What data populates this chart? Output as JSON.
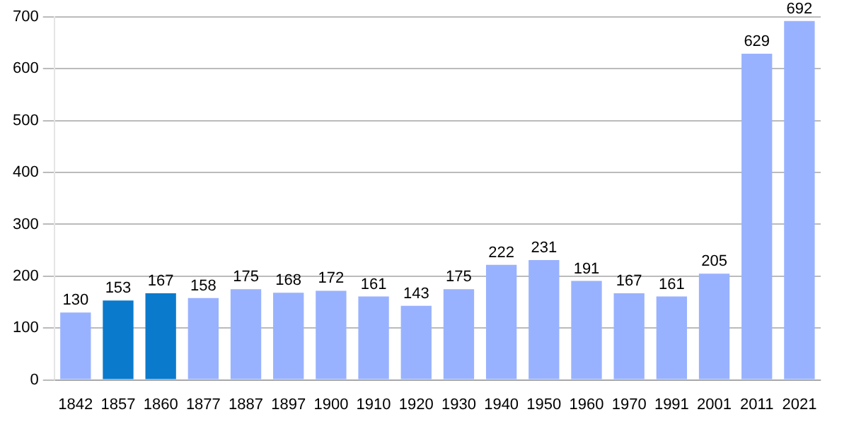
{
  "chart_data": {
    "type": "bar",
    "categories": [
      "1842",
      "1857",
      "1860",
      "1877",
      "1887",
      "1897",
      "1900",
      "1910",
      "1920",
      "1930",
      "1940",
      "1950",
      "1960",
      "1970",
      "1991",
      "2001",
      "2011",
      "2021"
    ],
    "values": [
      130,
      153,
      167,
      158,
      175,
      168,
      172,
      161,
      143,
      175,
      222,
      231,
      191,
      167,
      161,
      205,
      629,
      692
    ],
    "colors": [
      "#99b2ff",
      "#0a7acc",
      "#0a7acc",
      "#99b2ff",
      "#99b2ff",
      "#99b2ff",
      "#99b2ff",
      "#99b2ff",
      "#99b2ff",
      "#99b2ff",
      "#99b2ff",
      "#99b2ff",
      "#99b2ff",
      "#99b2ff",
      "#99b2ff",
      "#99b2ff",
      "#99b2ff",
      "#99b2ff"
    ],
    "ylim": [
      0,
      700
    ],
    "yticks": [
      0,
      100,
      200,
      300,
      400,
      500,
      600,
      700
    ],
    "grid": "y",
    "data_labels": true
  }
}
